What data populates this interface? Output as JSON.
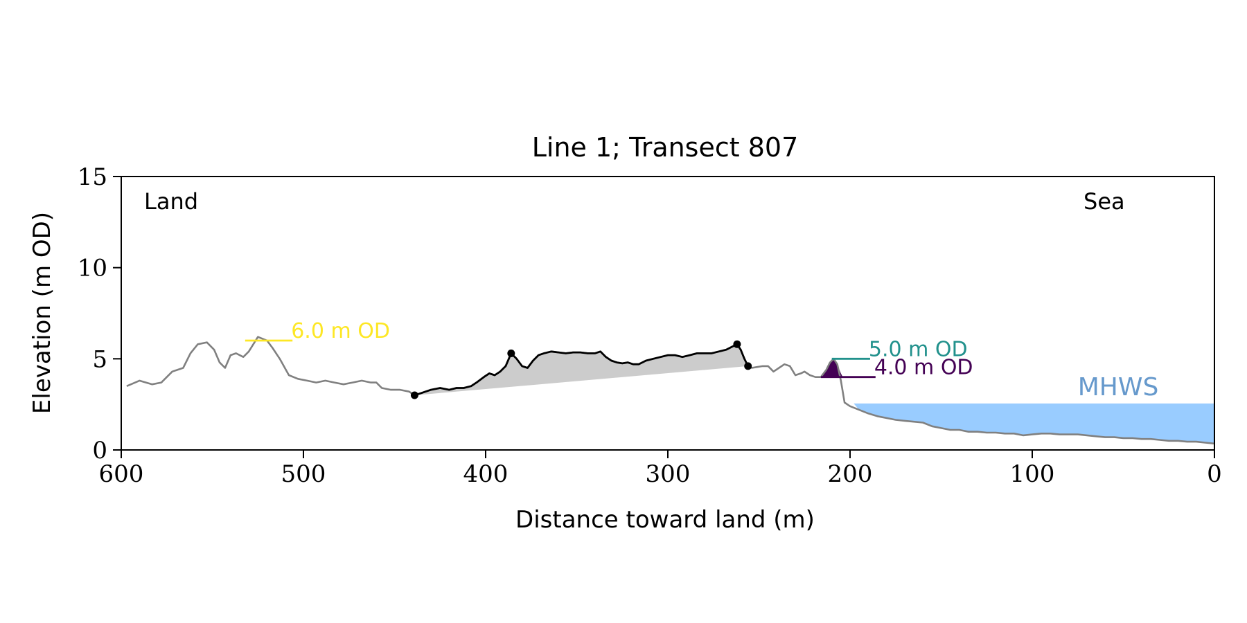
{
  "chart_data": {
    "type": "line",
    "title": "Line 1; Transect 807",
    "xlabel": "Distance toward land (m)",
    "ylabel": "Elevation (m OD)",
    "xlim": [
      600,
      0
    ],
    "ylim": [
      0,
      15
    ],
    "x_reversed": true,
    "grid": false,
    "xticks": [
      600,
      500,
      400,
      300,
      200,
      100,
      0
    ],
    "yticks": [
      0,
      5,
      10,
      15
    ],
    "annotations": {
      "land": "Land",
      "sea": "Sea",
      "mhws": "MHWS"
    },
    "colors": {
      "profile": "#808080",
      "dune": "#000000",
      "dune_fill": "#cccccc",
      "level_6": "#fde725",
      "level_5": "#21918c",
      "level_4": "#440154",
      "mhws_fill": "#99ccff",
      "mhws_text": "#6699cc"
    },
    "series": [
      {
        "role": "profile",
        "x": [
          597,
          590,
          583,
          578,
          572,
          566,
          562,
          558,
          553,
          549,
          546,
          543,
          540,
          537,
          533,
          530,
          525,
          520,
          517,
          513,
          508,
          503,
          498,
          493,
          488,
          483,
          478,
          473,
          468,
          463,
          460,
          457,
          452,
          447,
          442,
          439,
          436,
          430,
          425,
          420,
          416,
          412,
          408,
          405,
          401,
          398,
          395,
          392,
          389,
          386,
          383,
          380,
          377,
          374,
          371,
          368,
          364,
          360,
          356,
          352,
          348,
          344,
          340,
          337,
          334,
          331,
          328,
          325,
          322,
          319,
          316,
          312,
          308,
          304,
          300,
          296,
          292,
          288,
          284,
          280,
          276,
          272,
          268,
          264,
          262,
          260,
          258,
          256,
          254,
          251,
          248,
          245,
          242,
          239,
          236,
          233,
          230,
          227,
          225,
          222,
          219,
          216,
          213,
          211,
          209,
          207,
          205,
          203,
          200,
          195,
          190,
          185,
          180,
          175,
          170,
          165,
          160,
          155,
          150,
          145,
          140,
          135,
          130,
          125,
          120,
          115,
          110,
          105,
          100,
          95,
          90,
          85,
          80,
          75,
          70,
          65,
          60,
          55,
          50,
          45,
          40,
          35,
          30,
          25,
          20,
          15,
          10,
          5,
          0
        ],
        "y": [
          3.5,
          3.8,
          3.6,
          3.7,
          4.3,
          4.5,
          5.3,
          5.8,
          5.9,
          5.5,
          4.8,
          4.5,
          5.2,
          5.3,
          5.1,
          5.4,
          6.2,
          6.0,
          5.6,
          5.0,
          4.1,
          3.9,
          3.8,
          3.7,
          3.8,
          3.7,
          3.6,
          3.7,
          3.8,
          3.7,
          3.7,
          3.4,
          3.3,
          3.3,
          3.2,
          3.0,
          3.1,
          3.3,
          3.4,
          3.3,
          3.4,
          3.4,
          3.5,
          3.7,
          4.0,
          4.2,
          4.1,
          4.3,
          4.6,
          5.3,
          5.0,
          4.6,
          4.5,
          4.9,
          5.2,
          5.3,
          5.4,
          5.35,
          5.3,
          5.35,
          5.35,
          5.3,
          5.3,
          5.4,
          5.1,
          4.9,
          4.8,
          4.75,
          4.8,
          4.7,
          4.7,
          4.9,
          5.0,
          5.1,
          5.2,
          5.2,
          5.1,
          5.2,
          5.3,
          5.3,
          5.3,
          5.4,
          5.5,
          5.7,
          5.8,
          5.5,
          5.0,
          4.6,
          4.5,
          4.55,
          4.6,
          4.6,
          4.3,
          4.5,
          4.7,
          4.6,
          4.1,
          4.2,
          4.3,
          4.1,
          4.0,
          4.0,
          4.4,
          4.8,
          5.0,
          4.7,
          3.8,
          2.6,
          2.4,
          2.2,
          2.0,
          1.85,
          1.75,
          1.65,
          1.6,
          1.55,
          1.5,
          1.3,
          1.2,
          1.1,
          1.1,
          1.0,
          1.0,
          0.95,
          0.95,
          0.9,
          0.9,
          0.8,
          0.85,
          0.9,
          0.9,
          0.85,
          0.85,
          0.85,
          0.8,
          0.75,
          0.7,
          0.7,
          0.65,
          0.65,
          0.6,
          0.6,
          0.55,
          0.5,
          0.5,
          0.45,
          0.45,
          0.4,
          0.35
        ]
      },
      {
        "role": "dune-crest",
        "x": [
          439,
          436,
          430,
          425,
          420,
          416,
          412,
          408,
          405,
          401,
          398,
          395,
          392,
          389,
          386,
          383,
          380,
          377,
          374,
          371,
          368,
          364,
          360,
          356,
          352,
          348,
          344,
          340,
          337,
          334,
          331,
          328,
          325,
          322,
          319,
          316,
          312,
          308,
          304,
          300,
          296,
          292,
          288,
          284,
          280,
          276,
          272,
          268,
          264,
          262,
          260,
          258,
          256
        ],
        "y": [
          3.0,
          3.1,
          3.3,
          3.4,
          3.3,
          3.4,
          3.4,
          3.5,
          3.7,
          4.0,
          4.2,
          4.1,
          4.3,
          4.6,
          5.3,
          5.0,
          4.6,
          4.5,
          4.9,
          5.2,
          5.3,
          5.4,
          5.35,
          5.3,
          5.35,
          5.35,
          5.3,
          5.3,
          5.4,
          5.1,
          4.9,
          4.8,
          4.75,
          4.8,
          4.7,
          4.7,
          4.9,
          5.0,
          5.1,
          5.2,
          5.2,
          5.1,
          5.2,
          5.3,
          5.3,
          5.3,
          5.4,
          5.5,
          5.7,
          5.8,
          5.5,
          5.0,
          4.6
        ]
      }
    ],
    "markers": [
      {
        "x": 439,
        "y": 3.0
      },
      {
        "x": 386,
        "y": 5.3
      },
      {
        "x": 262,
        "y": 5.8
      },
      {
        "x": 256,
        "y": 4.6
      }
    ],
    "dune_base": {
      "x": [
        439,
        256
      ],
      "y": [
        3.0,
        4.6
      ]
    },
    "levels": [
      {
        "label": "6.0 m OD",
        "y": 6.0,
        "x": [
          532,
          506
        ],
        "colorKey": "level_6"
      },
      {
        "label": "5.0 m OD",
        "y": 5.0,
        "x": [
          210,
          189
        ],
        "colorKey": "level_5"
      },
      {
        "label": "4.0 m OD",
        "y": 4.0,
        "x": [
          216,
          186
        ],
        "colorKey": "level_4"
      }
    ],
    "level_4_fill": {
      "x": [
        216,
        213,
        211,
        209,
        207,
        205,
        204
      ],
      "y": [
        4.0,
        4.4,
        4.8,
        5.0,
        4.7,
        4.2,
        4.0
      ]
    },
    "mhws": {
      "level": 2.55,
      "x_start": 198,
      "x_end": 0
    }
  }
}
